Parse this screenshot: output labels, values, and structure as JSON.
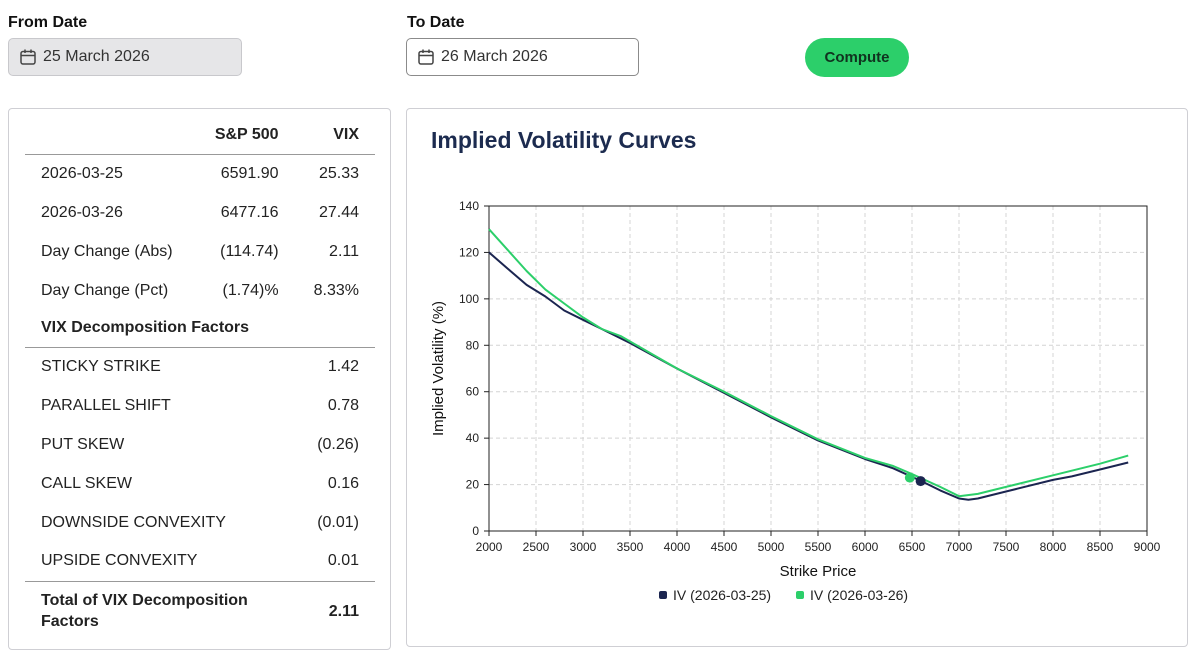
{
  "from_date": {
    "label": "From Date",
    "value": "25 March 2026"
  },
  "to_date": {
    "label": "To Date",
    "value": "26 March 2026"
  },
  "compute_label": "Compute",
  "table": {
    "headers": [
      "",
      "S&P 500",
      "VIX"
    ],
    "rows": [
      {
        "label": "2026-03-25",
        "spx": "6591.90",
        "vix": "25.33"
      },
      {
        "label": "2026-03-26",
        "spx": "6477.16",
        "vix": "27.44"
      },
      {
        "label": "Day Change (Abs)",
        "spx": "(114.74)",
        "vix": "2.11"
      },
      {
        "label": "Day Change (Pct)",
        "spx": "(1.74)%",
        "vix": "8.33%"
      }
    ],
    "factors_header": "VIX Decomposition Factors",
    "factors": [
      {
        "label": "STICKY STRIKE",
        "value": "1.42"
      },
      {
        "label": "PARALLEL SHIFT",
        "value": "0.78"
      },
      {
        "label": "PUT SKEW",
        "value": "(0.26)"
      },
      {
        "label": "CALL SKEW",
        "value": "0.16"
      },
      {
        "label": "DOWNSIDE CONVEXITY",
        "value": "(0.01)"
      },
      {
        "label": "UPSIDE CONVEXITY",
        "value": "0.01"
      }
    ],
    "total": {
      "label_line1": "Total of VIX Decomposition",
      "label_line2": "Factors",
      "value": "2.11"
    }
  },
  "colors": {
    "negative": "#a32626",
    "series1": "#1b2550",
    "series2": "#2ccf6a",
    "accent": "#2ccf6a"
  },
  "chart_data": {
    "type": "line",
    "title": "Implied Volatility Curves",
    "xlabel": "Strike Price",
    "ylabel": "Implied Volatility (%)",
    "xlim": [
      2000,
      9000
    ],
    "ylim": [
      0,
      140
    ],
    "xticks": [
      2000,
      2500,
      3000,
      3500,
      4000,
      4500,
      5000,
      5500,
      6000,
      6500,
      7000,
      7500,
      8000,
      8500,
      9000
    ],
    "yticks": [
      0,
      20,
      40,
      60,
      80,
      100,
      120,
      140
    ],
    "grid": true,
    "legend": "bottom-center",
    "series": [
      {
        "name": "IV (2026-03-25)",
        "color": "#1b2550",
        "x": [
          2000,
          2200,
          2400,
          2600,
          2800,
          3000,
          3200,
          3500,
          4000,
          4500,
          5000,
          5500,
          6000,
          6300,
          6600,
          6800,
          7000,
          7100,
          7200,
          7500,
          8000,
          8200,
          8500,
          8800
        ],
        "y": [
          120,
          113,
          106,
          101,
          95,
          91,
          87,
          81,
          70,
          59.5,
          49,
          39,
          31,
          27,
          21.5,
          17.5,
          14,
          13.5,
          14,
          17,
          22,
          23.5,
          26.5,
          29.5
        ],
        "marker": {
          "x": 6592,
          "y": 21.5
        }
      },
      {
        "name": "IV (2026-03-26)",
        "color": "#2ccf6a",
        "x": [
          2000,
          2200,
          2400,
          2600,
          2800,
          3000,
          3200,
          3400,
          3700,
          4000,
          4500,
          5000,
          5500,
          6000,
          6300,
          6500,
          6800,
          7000,
          7200,
          7500,
          8000,
          8500,
          8800
        ],
        "y": [
          130,
          121,
          112,
          104,
          98,
          92,
          87,
          84,
          77,
          70,
          60,
          49.5,
          39.5,
          31.5,
          28,
          24.5,
          19,
          15,
          16,
          19,
          24,
          29,
          32.5
        ],
        "marker": {
          "x": 6477,
          "y": 23
        }
      }
    ]
  }
}
